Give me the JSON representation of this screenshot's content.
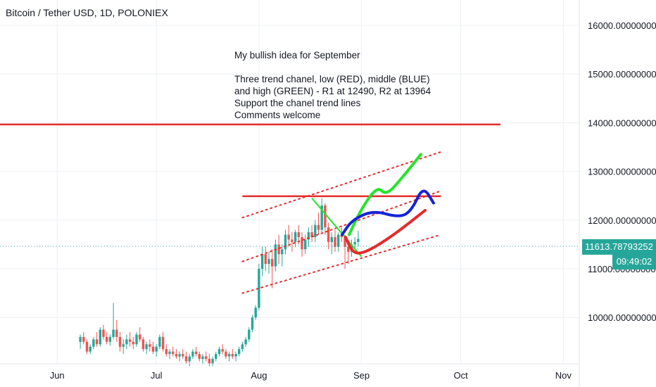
{
  "header": {
    "symbol_title": "Bitcoin / Tether USD, 1D, POLONIEX"
  },
  "annotation": {
    "lines": [
      "My bullish idea for September",
      "",
      "Three trend chanel, low (RED), middle (BLUE)",
      "and high (GREEN) - R1 at 12490, R2 at 13964",
      "Support the chanel trend lines",
      "Comments welcome"
    ]
  },
  "price_axis": {
    "ticks": [
      "16000.00000000",
      "15000.00000000",
      "14000.00000000",
      "13000.00000000",
      "12000.00000000",
      "11000.00000000",
      "10000.00000000"
    ],
    "current_price": "11613.78793252",
    "countdown": "09:49:02"
  },
  "time_axis": {
    "ticks": [
      "Jun",
      "Jul",
      "Aug",
      "Sep",
      "Oct",
      "Nov"
    ]
  },
  "colors": {
    "up": "#26a69a",
    "down": "#ef5350",
    "red": "#e52a2a",
    "green": "#23e52a",
    "blue": "#1424d6",
    "grid": "#eef0f4"
  },
  "chart_data": {
    "type": "candlestick",
    "title": "Bitcoin / Tether USD, 1D, POLONIEX",
    "ylim": [
      9200,
      16700
    ],
    "y_ticks": [
      10000,
      11000,
      12000,
      13000,
      14000,
      15000,
      16000
    ],
    "x_ticks": [
      "Jun",
      "Jul",
      "Aug",
      "Sep",
      "Oct",
      "Nov"
    ],
    "resistance_levels": [
      {
        "name": "R1",
        "value": 12490
      },
      {
        "name": "R2",
        "value": 13964
      }
    ],
    "candles": [
      [
        9500,
        9650,
        9350,
        9600
      ],
      [
        9600,
        9700,
        9450,
        9500
      ],
      [
        9500,
        9550,
        9250,
        9300
      ],
      [
        9300,
        9450,
        9250,
        9400
      ],
      [
        9400,
        9600,
        9350,
        9550
      ],
      [
        9550,
        9700,
        9400,
        9450
      ],
      [
        9450,
        9800,
        9400,
        9750
      ],
      [
        9750,
        9850,
        9550,
        9600
      ],
      [
        9600,
        9700,
        9450,
        9500
      ],
      [
        9500,
        9650,
        9420,
        9600
      ],
      [
        9600,
        10300,
        9550,
        9750
      ],
      [
        9750,
        9950,
        9500,
        9600
      ],
      [
        9600,
        9700,
        9300,
        9400
      ],
      [
        9400,
        9550,
        9250,
        9450
      ],
      [
        9450,
        9650,
        9350,
        9550
      ],
      [
        9550,
        9700,
        9400,
        9500
      ],
      [
        9500,
        9600,
        9350,
        9450
      ],
      [
        9450,
        9700,
        9400,
        9650
      ],
      [
        9650,
        9800,
        9500,
        9550
      ],
      [
        9550,
        9600,
        9300,
        9350
      ],
      [
        9350,
        9500,
        9250,
        9450
      ],
      [
        9450,
        9550,
        9300,
        9400
      ],
      [
        9400,
        9500,
        9250,
        9300
      ],
      [
        9300,
        9450,
        9200,
        9400
      ],
      [
        9400,
        9650,
        9350,
        9600
      ],
      [
        9600,
        9700,
        9300,
        9350
      ],
      [
        9350,
        9450,
        9200,
        9250
      ],
      [
        9250,
        9350,
        9150,
        9300
      ],
      [
        9300,
        9400,
        9200,
        9250
      ],
      [
        9250,
        9350,
        9150,
        9200
      ],
      [
        9200,
        9300,
        9100,
        9250
      ],
      [
        9250,
        9350,
        9150,
        9200
      ],
      [
        9200,
        9300,
        9050,
        9100
      ],
      [
        9100,
        9250,
        9000,
        9200
      ],
      [
        9200,
        9350,
        9150,
        9300
      ],
      [
        9300,
        9400,
        9200,
        9250
      ],
      [
        9250,
        9300,
        9100,
        9150
      ],
      [
        9150,
        9250,
        9050,
        9200
      ],
      [
        9200,
        9300,
        9100,
        9150
      ],
      [
        9150,
        9250,
        9000,
        9050
      ],
      [
        9050,
        9200,
        9000,
        9150
      ],
      [
        9150,
        9300,
        9100,
        9250
      ],
      [
        9250,
        9400,
        9200,
        9350
      ],
      [
        9350,
        9450,
        9250,
        9300
      ],
      [
        9300,
        9350,
        9150,
        9200
      ],
      [
        9200,
        9300,
        9100,
        9250
      ],
      [
        9250,
        9350,
        9150,
        9200
      ],
      [
        9200,
        9300,
        9100,
        9250
      ],
      [
        9250,
        9400,
        9200,
        9350
      ],
      [
        9350,
        9500,
        9300,
        9450
      ],
      [
        9450,
        9600,
        9400,
        9550
      ],
      [
        9550,
        9800,
        9500,
        9750
      ],
      [
        9750,
        10050,
        9700,
        10000
      ],
      [
        10000,
        10250,
        9950,
        10200
      ],
      [
        10200,
        11100,
        10150,
        11000
      ],
      [
        11000,
        11450,
        10850,
        11300
      ],
      [
        11300,
        11450,
        10950,
        11100
      ],
      [
        11100,
        11350,
        10900,
        11200
      ],
      [
        11200,
        11400,
        10600,
        11050
      ],
      [
        11050,
        11600,
        10950,
        11500
      ],
      [
        11500,
        11700,
        11100,
        11300
      ],
      [
        11300,
        11500,
        11050,
        11400
      ],
      [
        11400,
        11800,
        11300,
        11700
      ],
      [
        11700,
        11900,
        11450,
        11600
      ],
      [
        11600,
        11750,
        11350,
        11550
      ],
      [
        11550,
        11800,
        11450,
        11750
      ],
      [
        11750,
        11900,
        11500,
        11650
      ],
      [
        11650,
        11750,
        11250,
        11400
      ],
      [
        11400,
        11700,
        11300,
        11600
      ],
      [
        11600,
        11850,
        11450,
        11750
      ],
      [
        11750,
        11900,
        11550,
        11650
      ],
      [
        11650,
        12000,
        11550,
        11900
      ],
      [
        11900,
        12150,
        11700,
        11800
      ],
      [
        11800,
        12450,
        11750,
        12300
      ],
      [
        12300,
        12350,
        11700,
        11850
      ],
      [
        11850,
        11950,
        11400,
        11550
      ],
      [
        11550,
        11750,
        11300,
        11650
      ],
      [
        11650,
        11800,
        11350,
        11450
      ],
      [
        11450,
        11750,
        11350,
        11700
      ],
      [
        11700,
        11850,
        11550,
        11650
      ],
      [
        11650,
        11700,
        11000,
        11450
      ],
      [
        11450,
        11500,
        11100,
        11350
      ],
      [
        11350,
        11600,
        11250,
        11500
      ],
      [
        11500,
        11650,
        11400,
        11550
      ],
      [
        11550,
        11780,
        11450,
        11613.79
      ]
    ],
    "trend_channel_red_dotted": {
      "upper": [
        [
          "2020-07-27",
          12050
        ],
        [
          "2020-09-25",
          13400
        ]
      ],
      "middle": [
        [
          "2020-07-27",
          11150
        ],
        [
          "2020-09-25",
          12600
        ]
      ],
      "lower": [
        [
          "2020-07-27",
          10500
        ],
        [
          "2020-09-25",
          11700
        ]
      ]
    },
    "green_downtrend_line": [
      [
        "2020-08-17",
        12450
      ],
      [
        "2020-09-01",
        11250
      ]
    ],
    "projected_paths": [
      {
        "color": "green",
        "points": [
          11700,
          12200,
          12700,
          12500,
          12900,
          13350
        ]
      },
      {
        "color": "blue",
        "points": [
          11700,
          12000,
          12200,
          12050,
          12200,
          12700,
          12350
        ]
      },
      {
        "color": "red",
        "points": [
          11650,
          11300,
          11350,
          11700,
          12200
        ]
      }
    ]
  }
}
